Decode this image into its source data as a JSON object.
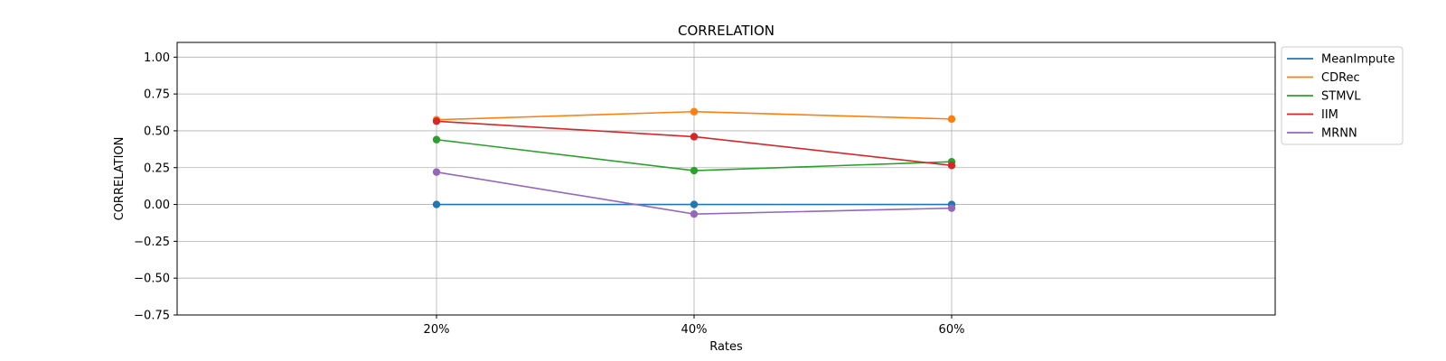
{
  "chart_data": {
    "type": "line",
    "title": "CORRELATION",
    "xlabel": "Rates",
    "ylabel": "CORRELATION",
    "categories": [
      "20%",
      "40%",
      "60%"
    ],
    "ylim": [
      -0.75,
      1.1
    ],
    "yticks": [
      -0.75,
      -0.5,
      -0.25,
      0.0,
      0.25,
      0.5,
      0.75,
      1.0
    ],
    "ytick_labels": [
      "−0.75",
      "−0.50",
      "−0.25",
      "0.00",
      "0.25",
      "0.50",
      "0.75",
      "1.00"
    ],
    "grid": true,
    "legend_position": "outside-top-right",
    "series": [
      {
        "name": "MeanImpute",
        "color": "#1f77b4",
        "values": [
          0.0,
          0.0,
          0.0
        ]
      },
      {
        "name": "CDRec",
        "color": "#ff7f0e",
        "values": [
          0.575,
          0.63,
          0.58
        ]
      },
      {
        "name": "STMVL",
        "color": "#2ca02c",
        "values": [
          0.44,
          0.23,
          0.29
        ]
      },
      {
        "name": "IIM",
        "color": "#d62728",
        "values": [
          0.565,
          0.46,
          0.265
        ]
      },
      {
        "name": "MRNN",
        "color": "#9467bd",
        "values": [
          0.22,
          -0.065,
          -0.025
        ]
      }
    ]
  }
}
